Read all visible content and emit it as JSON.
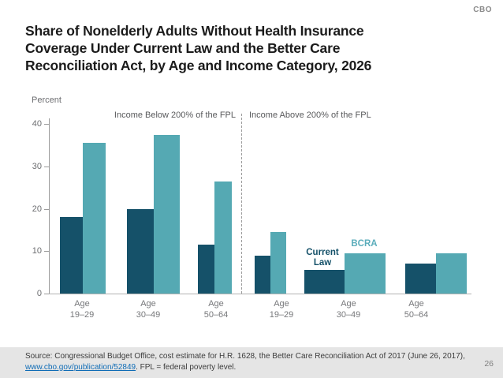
{
  "page": {
    "brand": "CBO",
    "page_number": "26"
  },
  "title_lines": [
    "Share of Nonelderly Adults Without Health Insurance",
    "Coverage Under Current Law and the Better Care",
    "Reconciliation Act, by Age and Income Category, 2026"
  ],
  "chart_data": {
    "type": "bar",
    "title": "Share of Nonelderly Adults Without Health Insurance Coverage Under Current Law and the Better Care Reconciliation Act, by Age and Income Category, 2026",
    "ylabel": "Percent",
    "ylim": [
      0,
      40
    ],
    "yticks": [
      0,
      10,
      20,
      30,
      40
    ],
    "grid": false,
    "legend_position": "annotated-above-bars",
    "groups": [
      {
        "label": "Income Below 200% of the FPL",
        "categories": [
          "Age 19–29",
          "Age 30–49",
          "Age 50–64"
        ],
        "series": [
          {
            "name": "Current Law",
            "values": [
              18,
              20,
              11.5
            ]
          },
          {
            "name": "BCRA",
            "values": [
              35.5,
              37.5,
              26.5
            ]
          }
        ]
      },
      {
        "label": "Income Above 200% of the FPL",
        "categories": [
          "Age 19–29",
          "Age 30–49",
          "Age 50–64"
        ],
        "series": [
          {
            "name": "Current Law",
            "values": [
              9,
              5.5,
              7
            ]
          },
          {
            "name": "BCRA",
            "values": [
              14.5,
              9.5,
              9.5
            ]
          }
        ]
      }
    ],
    "legend": [
      {
        "name": "Current Law",
        "color": "#155169"
      },
      {
        "name": "BCRA",
        "color": "#55a9b3"
      }
    ]
  },
  "footer": {
    "source_line": "Source: Congressional Budget Office, cost estimate for H.R. 1628, the Better Care Reconciliation Act of 2017 (June 26, 2017),",
    "link_text": "www.cbo.gov/publication/52849",
    "after_link": ". FPL = federal poverty level."
  },
  "colors": {
    "current_law": "#155169",
    "bcra": "#55a9b3",
    "footer_background": "#e5e5e5",
    "link_blue": "#0f6cb6"
  }
}
